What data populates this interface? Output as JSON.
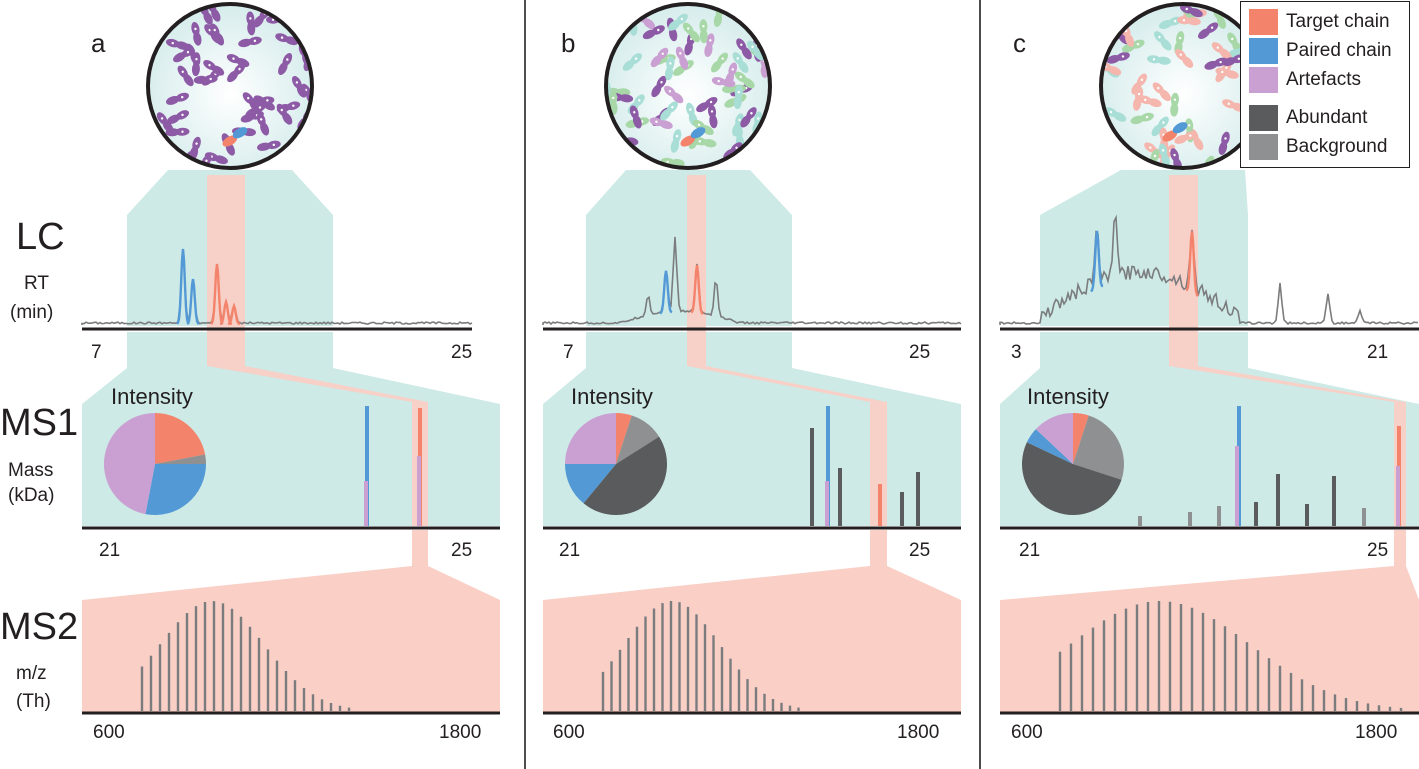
{
  "colors": {
    "target": "#f4836c",
    "paired": "#5399d6",
    "artefact": "#c9a0d1",
    "abundant": "#5a5b5d",
    "background": "#8f9092",
    "zoom_teal": "#cdeae6",
    "zoom_salmon": "#f9cfc6",
    "trace": "#7b7c7e",
    "axis": "#231f20"
  },
  "legend": {
    "target": "Target chain",
    "paired": "Paired chain",
    "artefacts": "Artefacts",
    "abundant": "Abundant",
    "background": "Background"
  },
  "rows": {
    "lc_title": "LC",
    "lc_unit_1": "RT",
    "lc_unit_2": "(min)",
    "ms1_title": "MS1",
    "ms1_unit_1": "Mass",
    "ms1_unit_2": "(kDa)",
    "ms2_title": "MS2",
    "ms2_unit_1": "m/z",
    "ms2_unit_2": "(Th)"
  },
  "panels": [
    {
      "letter": "a",
      "intensity_label": "Intensity",
      "lc_ticks": [
        "7",
        "25"
      ],
      "ms1_ticks": [
        "21",
        "25"
      ],
      "ms2_ticks": [
        "600",
        "1800"
      ],
      "pie": [
        {
          "category": "target",
          "value": 0.22
        },
        {
          "category": "abundant",
          "value": 0.0
        },
        {
          "category": "background",
          "value": 0.03
        },
        {
          "category": "paired",
          "value": 0.28
        },
        {
          "category": "artefact",
          "value": 0.47
        }
      ]
    },
    {
      "letter": "b",
      "intensity_label": "Intensity",
      "lc_ticks": [
        "7",
        "25"
      ],
      "ms1_ticks": [
        "21",
        "25"
      ],
      "ms2_ticks": [
        "600",
        "1800"
      ],
      "pie": [
        {
          "category": "target",
          "value": 0.05
        },
        {
          "category": "background",
          "value": 0.11
        },
        {
          "category": "abundant",
          "value": 0.45
        },
        {
          "category": "paired",
          "value": 0.14
        },
        {
          "category": "artefact",
          "value": 0.25
        }
      ]
    },
    {
      "letter": "c",
      "intensity_label": "Intensity",
      "lc_ticks": [
        "3",
        "21"
      ],
      "ms1_ticks": [
        "21",
        "25"
      ],
      "ms2_ticks": [
        "600",
        "1800"
      ],
      "pie": [
        {
          "category": "target",
          "value": 0.05
        },
        {
          "category": "background",
          "value": 0.25
        },
        {
          "category": "abundant",
          "value": 0.52
        },
        {
          "category": "paired",
          "value": 0.05
        },
        {
          "category": "artefact",
          "value": 0.13
        }
      ]
    }
  ]
}
